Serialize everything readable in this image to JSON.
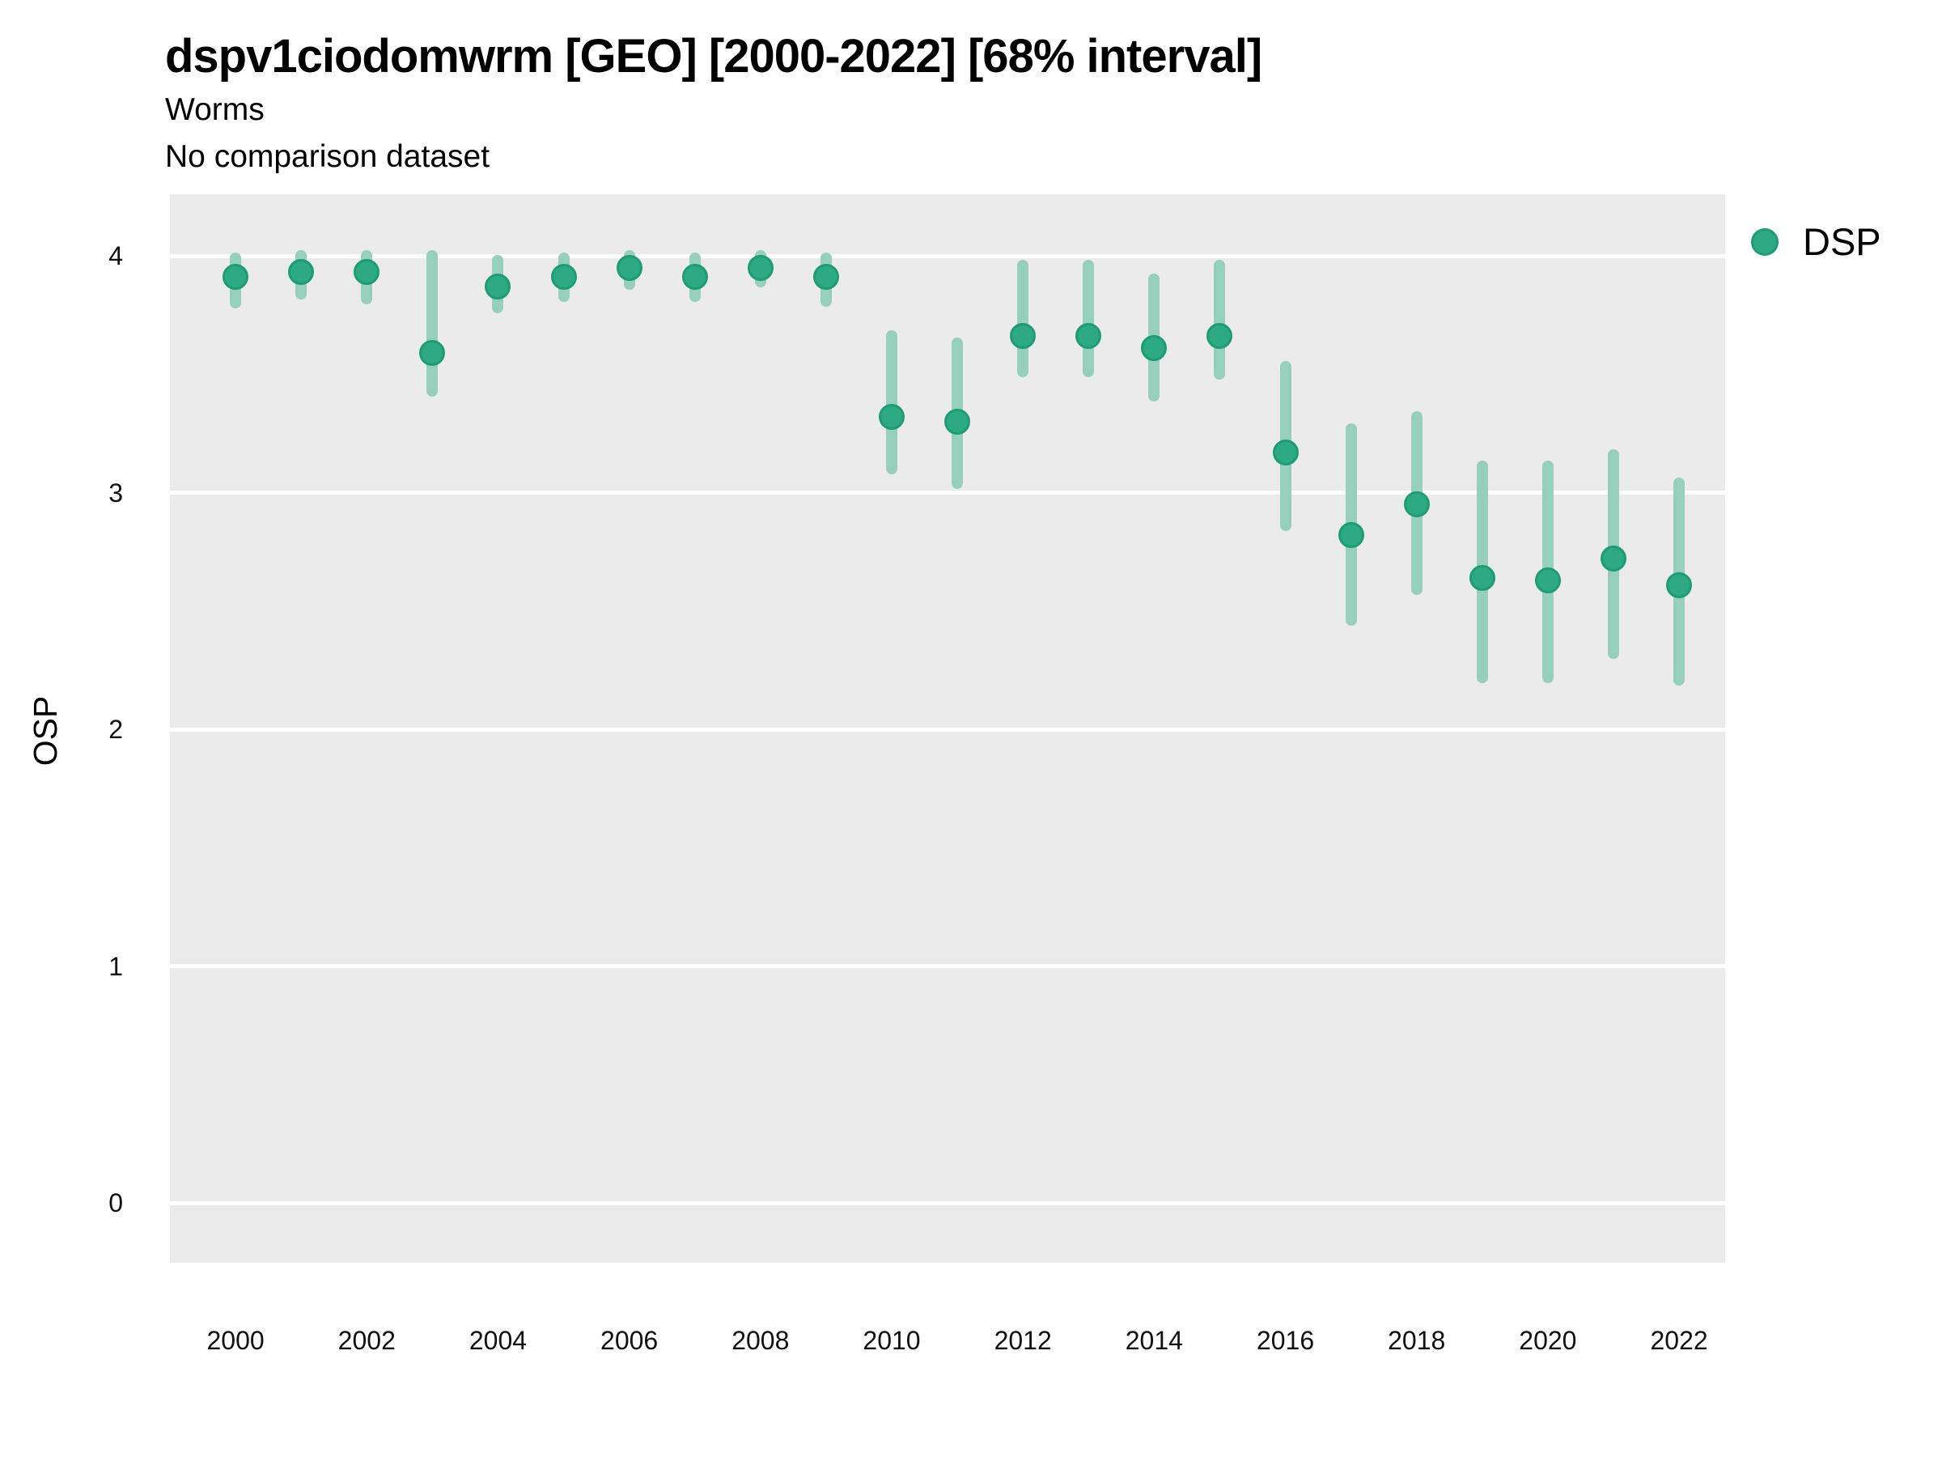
{
  "title": "dspv1ciodomwrm [GEO] [2000-2022] [68% interval]",
  "subtitle": "Worms",
  "comparison_note": "No comparison dataset",
  "legend": {
    "items": [
      {
        "label": "DSP",
        "marker": "circle"
      }
    ]
  },
  "colors": {
    "point_fill": "#2DA983",
    "point_stroke": "#1E9C74",
    "interval_bar": "#96CFBC",
    "panel_background": "#EBEBEB",
    "gridline": "#FFFFFF",
    "text": "#000000"
  },
  "chart_data": {
    "type": "scatter",
    "title": "dspv1ciodomwrm [GEO] [2000-2022] [68% interval]",
    "subtitle": "Worms",
    "note": "No comparison dataset",
    "xlabel": "",
    "ylabel": "OSP",
    "interval_label": "68% interval",
    "grid": "horizontal-major-only",
    "legend_position": "right-top",
    "x_ticks": [
      2000,
      2002,
      2004,
      2006,
      2008,
      2010,
      2012,
      2014,
      2016,
      2018,
      2020,
      2022
    ],
    "y_ticks": [
      0,
      1,
      2,
      3,
      4
    ],
    "ylim": [
      0,
      4
    ],
    "xlim_drawn": [
      1999,
      2022.7
    ],
    "ylim_drawn": [
      -0.26,
      4.26
    ],
    "series": [
      {
        "name": "DSP",
        "points": [
          {
            "x": 2000,
            "y": 3.91,
            "lo": 3.8,
            "hi": 3.99
          },
          {
            "x": 2001,
            "y": 3.93,
            "lo": 3.84,
            "hi": 4.0
          },
          {
            "x": 2002,
            "y": 3.93,
            "lo": 3.82,
            "hi": 4.0
          },
          {
            "x": 2003,
            "y": 3.59,
            "lo": 3.43,
            "hi": 4.0
          },
          {
            "x": 2004,
            "y": 3.87,
            "lo": 3.78,
            "hi": 3.98
          },
          {
            "x": 2005,
            "y": 3.91,
            "lo": 3.83,
            "hi": 3.99
          },
          {
            "x": 2006,
            "y": 3.95,
            "lo": 3.88,
            "hi": 4.0
          },
          {
            "x": 2007,
            "y": 3.91,
            "lo": 3.83,
            "hi": 3.99
          },
          {
            "x": 2008,
            "y": 3.95,
            "lo": 3.89,
            "hi": 4.0
          },
          {
            "x": 2009,
            "y": 3.91,
            "lo": 3.81,
            "hi": 3.99
          },
          {
            "x": 2010,
            "y": 3.32,
            "lo": 3.1,
            "hi": 3.66
          },
          {
            "x": 2011,
            "y": 3.3,
            "lo": 3.04,
            "hi": 3.63
          },
          {
            "x": 2012,
            "y": 3.66,
            "lo": 3.51,
            "hi": 3.96
          },
          {
            "x": 2013,
            "y": 3.66,
            "lo": 3.51,
            "hi": 3.96
          },
          {
            "x": 2014,
            "y": 3.61,
            "lo": 3.41,
            "hi": 3.9
          },
          {
            "x": 2015,
            "y": 3.66,
            "lo": 3.5,
            "hi": 3.96
          },
          {
            "x": 2016,
            "y": 3.17,
            "lo": 2.86,
            "hi": 3.53
          },
          {
            "x": 2017,
            "y": 2.82,
            "lo": 2.46,
            "hi": 3.27
          },
          {
            "x": 2018,
            "y": 2.95,
            "lo": 2.59,
            "hi": 3.32
          },
          {
            "x": 2019,
            "y": 2.64,
            "lo": 2.22,
            "hi": 3.11
          },
          {
            "x": 2020,
            "y": 2.63,
            "lo": 2.22,
            "hi": 3.11
          },
          {
            "x": 2021,
            "y": 2.72,
            "lo": 2.32,
            "hi": 3.16
          },
          {
            "x": 2022,
            "y": 2.61,
            "lo": 2.21,
            "hi": 3.04
          }
        ]
      }
    ]
  }
}
